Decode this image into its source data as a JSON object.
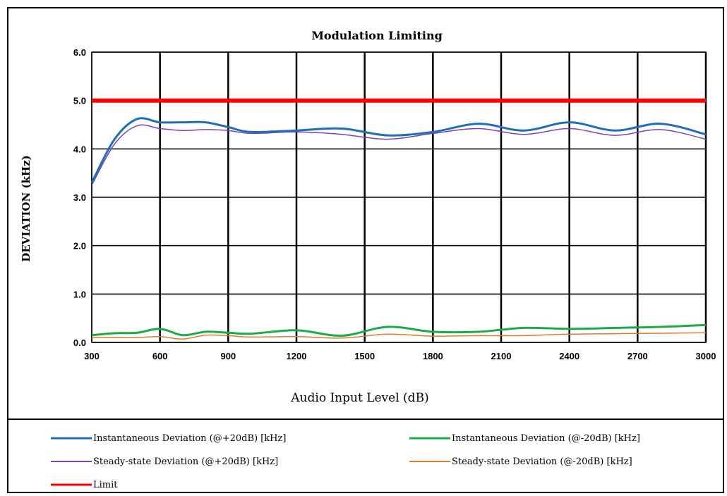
{
  "chart_data": {
    "type": "line",
    "title": "Modulation Limiting",
    "xlabel": "Audio Input Level (dB)",
    "ylabel": "DEVIATION (kHz)",
    "xlim": [
      300,
      3000
    ],
    "ylim": [
      0,
      6
    ],
    "x_ticks": [
      "300",
      "600",
      "900",
      "1200",
      "1500",
      "1800",
      "2100",
      "2400",
      "2700",
      "3000"
    ],
    "y_ticks": [
      "0.0",
      "1.0",
      "2.0",
      "3.0",
      "4.0",
      "5.0",
      "6.0"
    ],
    "grid": true,
    "legend_position": "bottom",
    "x": [
      300,
      400,
      500,
      600,
      700,
      800,
      900,
      1000,
      1200,
      1400,
      1600,
      1800,
      2000,
      2200,
      2400,
      2600,
      2800,
      3000
    ],
    "series": [
      {
        "name": "Instantaneous Deviation (@+20dB) [kHz]",
        "color": "#1f6fb4",
        "stroke": 3,
        "values": [
          3.3,
          4.2,
          4.62,
          4.55,
          4.55,
          4.55,
          4.45,
          4.35,
          4.38,
          4.42,
          4.28,
          4.35,
          4.52,
          4.38,
          4.55,
          4.38,
          4.52,
          4.3
        ]
      },
      {
        "name": "Instantaneous Deviation (@-20dB) [kHz]",
        "color": "#1dab47",
        "stroke": 3,
        "values": [
          0.15,
          0.19,
          0.2,
          0.28,
          0.15,
          0.22,
          0.2,
          0.18,
          0.25,
          0.14,
          0.32,
          0.22,
          0.22,
          0.3,
          0.28,
          0.3,
          0.32,
          0.36
        ]
      },
      {
        "name": "Steady-state Deviation (@+20dB) [kHz]",
        "color": "#7b42b5",
        "stroke": 1.5,
        "values": [
          3.25,
          4.1,
          4.48,
          4.42,
          4.38,
          4.4,
          4.38,
          4.32,
          4.35,
          4.3,
          4.2,
          4.32,
          4.42,
          4.3,
          4.42,
          4.28,
          4.4,
          4.2
        ]
      },
      {
        "name": "Steady-state Deviation (@-20dB) [kHz]",
        "color": "#e07b28",
        "stroke": 1.5,
        "values": [
          0.1,
          0.1,
          0.1,
          0.12,
          0.07,
          0.15,
          0.14,
          0.11,
          0.12,
          0.09,
          0.17,
          0.13,
          0.14,
          0.14,
          0.17,
          0.18,
          0.19,
          0.2
        ]
      },
      {
        "name": "Limit",
        "color": "#ff0000",
        "stroke": 6,
        "values": [
          5,
          5,
          5,
          5,
          5,
          5,
          5,
          5,
          5,
          5,
          5,
          5,
          5,
          5,
          5,
          5,
          5,
          5
        ]
      }
    ]
  }
}
